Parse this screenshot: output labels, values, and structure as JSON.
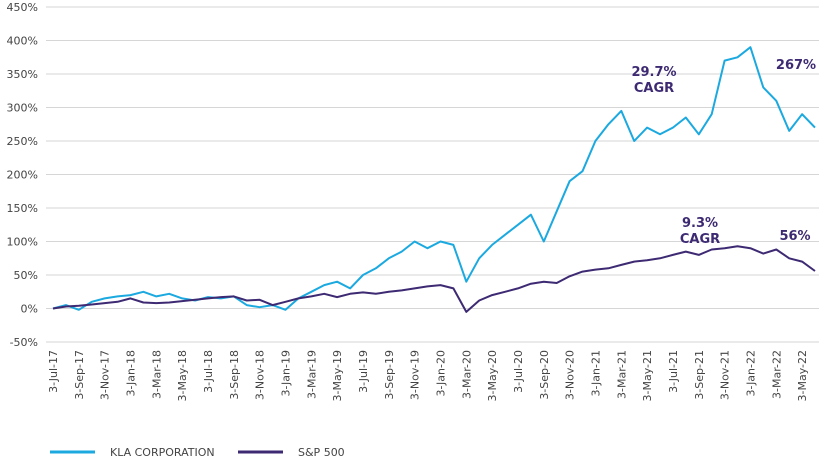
{
  "chart_data": {
    "type": "line",
    "categories": [
      "3-Jul-17",
      null,
      "3-Sep-17",
      null,
      "3-Nov-17",
      null,
      "3-Jan-18",
      null,
      "3-Mar-18",
      null,
      "3-May-18",
      null,
      "3-Jul-18",
      null,
      "3-Sep-18",
      null,
      "3-Nov-18",
      null,
      "3-Jan-19",
      null,
      "3-Mar-19",
      null,
      "3-May-19",
      null,
      "3-Jul-19",
      null,
      "3-Sep-19",
      null,
      "3-Nov-19",
      null,
      "3-Jan-20",
      null,
      "3-Mar-20",
      null,
      "3-May-20",
      null,
      "3-Jul-20",
      null,
      "3-Sep-20",
      null,
      "3-Nov-20",
      null,
      "3-Jan-21",
      null,
      "3-Mar-21",
      null,
      "3-May-21",
      null,
      "3-Jul-21",
      null,
      "3-Sep-21",
      null,
      "3-Nov-21",
      null,
      "3-Jan-22",
      null,
      "3-Mar-22",
      null,
      "3-May-22",
      null
    ],
    "series": [
      {
        "name": "KLA CORPORATION",
        "color": "#1ba9e0",
        "values": [
          0,
          5,
          -2,
          10,
          15,
          18,
          20,
          25,
          18,
          22,
          15,
          12,
          17,
          15,
          18,
          5,
          2,
          5,
          -2,
          15,
          25,
          35,
          40,
          30,
          50,
          60,
          75,
          85,
          100,
          90,
          100,
          95,
          40,
          75,
          95,
          110,
          125,
          140,
          100,
          145,
          190,
          205,
          250,
          275,
          295,
          250,
          270,
          260,
          270,
          285,
          260,
          290,
          370,
          375,
          390,
          330,
          310,
          265,
          290,
          270
        ]
      },
      {
        "name": "S&P 500",
        "color": "#3d2a73",
        "values": [
          0,
          3,
          4,
          6,
          8,
          10,
          15,
          9,
          8,
          9,
          11,
          13,
          15,
          17,
          18,
          12,
          13,
          5,
          10,
          15,
          18,
          22,
          17,
          22,
          24,
          22,
          25,
          27,
          30,
          33,
          35,
          30,
          -5,
          12,
          20,
          25,
          30,
          37,
          40,
          38,
          48,
          55,
          58,
          60,
          65,
          70,
          72,
          75,
          80,
          85,
          80,
          88,
          90,
          93,
          90,
          82,
          88,
          75,
          70,
          56
        ]
      }
    ],
    "ylim": [
      -50,
      450
    ],
    "yticks": [
      {
        "value": -50,
        "label": "-50%"
      },
      {
        "value": 0,
        "label": "0%"
      },
      {
        "value": 50,
        "label": "50%"
      },
      {
        "value": 100,
        "label": "100%"
      },
      {
        "value": 150,
        "label": "150%"
      },
      {
        "value": 200,
        "label": "200%"
      },
      {
        "value": 250,
        "label": "250%"
      },
      {
        "value": 300,
        "label": "300%"
      },
      {
        "value": 350,
        "label": "350%"
      },
      {
        "value": 400,
        "label": "400%"
      },
      {
        "value": 450,
        "label": "450%"
      }
    ],
    "grid": true,
    "annotations": [
      "29.7%",
      "CAGR",
      "267%",
      "9.3%",
      "CAGR",
      "56%"
    ]
  }
}
